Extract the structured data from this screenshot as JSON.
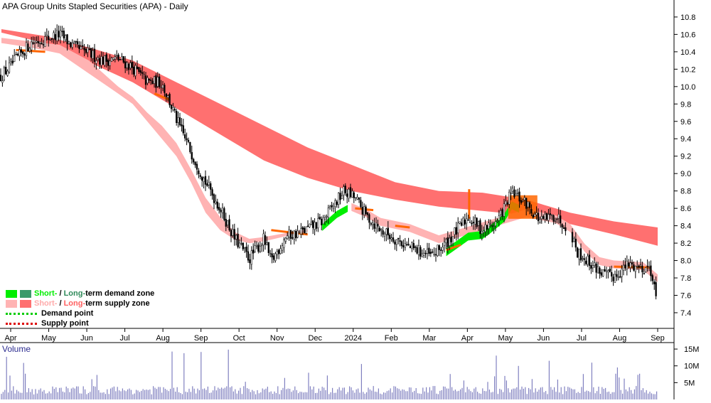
{
  "title": "APA Group Units Stapled Securities (APA) - Daily",
  "volume_label": "Volume",
  "legend": {
    "demand_short": "Short-",
    "demand_sep": " / ",
    "demand_long": "Long-",
    "demand_rest": "term demand zone",
    "supply_short": "Short-",
    "supply_sep": " / ",
    "supply_long": "Long-",
    "supply_rest": "term supply zone",
    "demand_point": "Demand point",
    "supply_point": "Supply point"
  },
  "colors": {
    "short_demand": "#00ee00",
    "long_demand": "#3a9a6a",
    "short_supply": "#ffb3b3",
    "long_supply": "#ff7070",
    "demand_point": "#00cc00",
    "supply_point": "#dd0000",
    "orange": "#ff6600",
    "volume": "#8080c0",
    "candle": "#000000"
  },
  "chart_data": {
    "type": "line",
    "title": "APA Group Units Stapled Securities (APA) - Daily",
    "x_axis": {
      "tick_labels": [
        "Apr",
        "May",
        "Jun",
        "Jul",
        "Aug",
        "Sep",
        "Oct",
        "Nov",
        "Dec",
        "2024",
        "Feb",
        "Mar",
        "Apr",
        "May",
        "Jun",
        "Jul",
        "Aug",
        "Sep"
      ]
    },
    "y_axis": {
      "ticks": [
        7.4,
        7.6,
        7.8,
        8.0,
        8.2,
        8.4,
        8.6,
        8.8,
        9.0,
        9.2,
        9.4,
        9.6,
        9.8,
        10.0,
        10.2,
        10.4,
        10.6,
        10.8
      ],
      "ylim": [
        7.22,
        10.93
      ]
    },
    "volume_axis": {
      "tick_labels": [
        "5M",
        "10M",
        "15M"
      ],
      "ticks": [
        5,
        10,
        15
      ],
      "ylim": [
        0,
        16.5
      ]
    },
    "price_path": [
      [
        0,
        10.12
      ],
      [
        4,
        10.5
      ],
      [
        8,
        10.6
      ],
      [
        10,
        10.45
      ],
      [
        12,
        10.38
      ],
      [
        14,
        10.3
      ],
      [
        16,
        10.32
      ],
      [
        18,
        10.22
      ],
      [
        20,
        10.05
      ],
      [
        22,
        10.05
      ],
      [
        24,
        9.62
      ],
      [
        26,
        9.25
      ],
      [
        28,
        8.9
      ],
      [
        30,
        8.6
      ],
      [
        32,
        8.25
      ],
      [
        34,
        8.02
      ],
      [
        36,
        8.25
      ],
      [
        37,
        7.98
      ],
      [
        39,
        8.28
      ],
      [
        41,
        8.32
      ],
      [
        44,
        8.45
      ],
      [
        47,
        8.8
      ],
      [
        48.5,
        8.72
      ],
      [
        50,
        8.52
      ],
      [
        52,
        8.35
      ],
      [
        54,
        8.25
      ],
      [
        56,
        8.15
      ],
      [
        59,
        8.05
      ],
      [
        61,
        8.2
      ],
      [
        64,
        8.5
      ],
      [
        66,
        8.35
      ],
      [
        68,
        8.45
      ],
      [
        70,
        8.78
      ],
      [
        72,
        8.65
      ],
      [
        74,
        8.45
      ],
      [
        76,
        8.52
      ],
      [
        78,
        8.35
      ],
      [
        79,
        8.1
      ],
      [
        81,
        7.95
      ],
      [
        83,
        7.82
      ],
      [
        84,
        7.82
      ],
      [
        86,
        7.95
      ],
      [
        88,
        7.92
      ],
      [
        89,
        7.92
      ],
      [
        90,
        7.45
      ]
    ],
    "series": [
      {
        "name": "Short-term supply zone (top)",
        "values": [
          [
            0,
            10.56
          ],
          [
            4,
            10.52
          ],
          [
            8,
            10.48
          ],
          [
            12,
            10.3
          ],
          [
            16,
            10.0
          ],
          [
            18,
            9.88
          ],
          [
            20,
            9.7
          ],
          [
            22,
            9.55
          ],
          [
            24,
            9.35
          ],
          [
            26,
            9.05
          ],
          [
            28,
            8.72
          ],
          [
            30,
            8.5
          ],
          [
            32,
            8.33
          ],
          [
            34,
            8.25
          ],
          [
            36,
            8.27
          ],
          [
            38,
            8.3
          ],
          [
            40,
            8.33
          ],
          [
            42,
            8.36
          ]
        ]
      },
      {
        "name": "Short-term supply zone (bottom)",
        "values": [
          [
            0,
            10.5
          ],
          [
            4,
            10.45
          ],
          [
            8,
            10.38
          ],
          [
            12,
            10.15
          ],
          [
            16,
            9.92
          ],
          [
            18,
            9.8
          ],
          [
            20,
            9.6
          ],
          [
            22,
            9.4
          ],
          [
            24,
            9.2
          ],
          [
            26,
            8.9
          ],
          [
            28,
            8.55
          ],
          [
            30,
            8.35
          ],
          [
            32,
            8.24
          ],
          [
            34,
            8.2
          ],
          [
            36,
            8.22
          ],
          [
            38,
            8.26
          ],
          [
            40,
            8.3
          ],
          [
            42,
            8.33
          ]
        ]
      },
      {
        "name": "Long-term supply zone (top)",
        "values": [
          [
            0,
            10.66
          ],
          [
            6,
            10.58
          ],
          [
            12,
            10.45
          ],
          [
            18,
            10.3
          ],
          [
            24,
            10.05
          ],
          [
            30,
            9.8
          ],
          [
            36,
            9.55
          ],
          [
            42,
            9.3
          ],
          [
            48,
            9.1
          ],
          [
            54,
            8.9
          ],
          [
            60,
            8.8
          ],
          [
            66,
            8.78
          ],
          [
            72,
            8.7
          ],
          [
            78,
            8.55
          ],
          [
            84,
            8.45
          ],
          [
            90,
            8.38
          ]
        ]
      },
      {
        "name": "Long-term supply zone (bottom)",
        "values": [
          [
            0,
            10.62
          ],
          [
            6,
            10.5
          ],
          [
            12,
            10.28
          ],
          [
            18,
            10.05
          ],
          [
            24,
            9.75
          ],
          [
            30,
            9.45
          ],
          [
            36,
            9.15
          ],
          [
            42,
            8.95
          ],
          [
            48,
            8.8
          ],
          [
            54,
            8.7
          ],
          [
            60,
            8.62
          ],
          [
            66,
            8.57
          ],
          [
            72,
            8.52
          ],
          [
            78,
            8.42
          ],
          [
            84,
            8.3
          ],
          [
            90,
            8.17
          ]
        ]
      },
      {
        "name": "Short-term demand zone",
        "values": [
          [
            44,
            8.4
          ],
          [
            46,
            8.55
          ],
          [
            47.5,
            8.62
          ],
          [
            61,
            8.12
          ],
          [
            64,
            8.3
          ],
          [
            66,
            8.32
          ],
          [
            67,
            8.38
          ],
          [
            69,
            8.52
          ],
          [
            70,
            8.66
          ],
          [
            71,
            8.62
          ]
        ]
      },
      {
        "name": "Short-term supply zone (late)",
        "values": [
          [
            48,
            8.62
          ],
          [
            50,
            8.55
          ],
          [
            52,
            8.45
          ],
          [
            56,
            8.38
          ],
          [
            60,
            8.25
          ],
          [
            72,
            8.55
          ],
          [
            76,
            8.48
          ],
          [
            78,
            8.38
          ],
          [
            80,
            8.15
          ],
          [
            82,
            8.0
          ],
          [
            84,
            7.96
          ],
          [
            86,
            7.95
          ],
          [
            88,
            7.94
          ],
          [
            90,
            7.8
          ]
        ]
      }
    ],
    "legend": [
      "Short- / Long-term demand zone",
      "Short- / Long-term supply zone",
      "Demand point",
      "Supply point"
    ],
    "grid": false,
    "legend_position": "bottom-left"
  }
}
